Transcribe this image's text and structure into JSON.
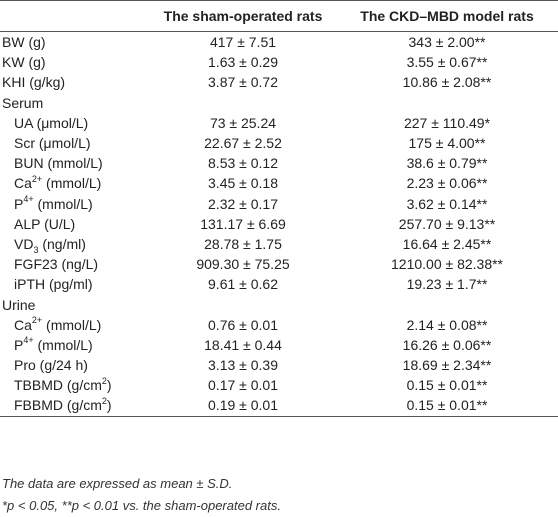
{
  "headers": [
    "",
    "The sham-operated rats",
    "The CKD–MBD model rats"
  ],
  "rows": [
    {
      "label": "BW (g)",
      "sham": "417 ± 7.51",
      "model": "343 ± 2.00**",
      "indent": false
    },
    {
      "label": "KW (g)",
      "sham": "1.63 ± 0.29",
      "model": "3.55 ± 0.67**",
      "indent": false
    },
    {
      "label": "KHI (g/kg)",
      "sham": "3.87 ± 0.72",
      "model": "10.86 ± 2.08**",
      "indent": false
    },
    {
      "label": "Serum",
      "sham": "",
      "model": "",
      "indent": false
    },
    {
      "label": "UA (μmol/L)",
      "sham": "73 ± 25.24",
      "model": "227 ± 110.49*",
      "indent": true
    },
    {
      "label": "Scr (μmol/L)",
      "sham": "22.67 ± 2.52",
      "model": "175 ± 4.00**",
      "indent": true
    },
    {
      "label": "BUN (mmol/L)",
      "sham": "8.53 ± 0.12",
      "model": "38.6 ± 0.79**",
      "indent": true
    },
    {
      "label": "Ca2+ (mmol/L)",
      "sham": "3.45 ± 0.18",
      "model": "2.23 ± 0.06**",
      "indent": true
    },
    {
      "label": "P4+ (mmol/L)",
      "sham": "2.32 ± 0.17",
      "model": "3.62 ± 0.14**",
      "indent": true
    },
    {
      "label": "ALP (U/L)",
      "sham": "131.17 ± 6.69",
      "model": "257.70 ± 9.13**",
      "indent": true
    },
    {
      "label": "VD3 (ng/ml)",
      "sham": "28.78 ± 1.75",
      "model": "16.64 ± 2.45**",
      "indent": true
    },
    {
      "label": "FGF23 (ng/L)",
      "sham": "909.30 ± 75.25",
      "model": "1210.00 ± 82.38**",
      "indent": true
    },
    {
      "label": "iPTH (pg/ml)",
      "sham": "9.61 ± 0.62",
      "model": "19.23 ± 1.7**",
      "indent": true
    },
    {
      "label": "Urine",
      "sham": "",
      "model": "",
      "indent": false
    },
    {
      "label": "Ca2+ (mmol/L)",
      "sham": "0.76 ± 0.01",
      "model": "2.14 ± 0.08**",
      "indent": true
    },
    {
      "label": "P4+ (mmol/L)",
      "sham": "18.41 ± 0.44",
      "model": "16.26 ± 0.06**",
      "indent": true
    },
    {
      "label": "Pro (g/24 h)",
      "sham": "3.13 ± 0.39",
      "model": "18.69 ± 2.34**",
      "indent": true
    },
    {
      "label": "TBBMD (g/cm2)",
      "sham": "0.17 ± 0.01",
      "model": "0.15 ± 0.01**",
      "indent": true
    },
    {
      "label": "FBBMD (g/cm2)",
      "sham": "0.19 ± 0.01",
      "model": "0.15 ± 0.01**",
      "indent": true
    }
  ],
  "notes": [
    "The data are expressed as mean ± S.D.",
    "*p < 0.05, **p < 0.01 vs. the sham-operated rats."
  ]
}
